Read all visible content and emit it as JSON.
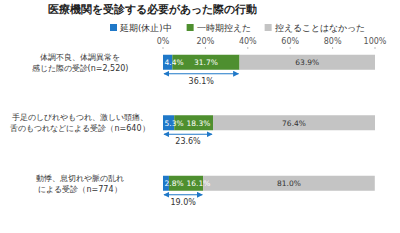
{
  "chart_data": {
    "type": "bar",
    "title": "医療機関を受診する必要があった際の行動",
    "orientation": "horizontal",
    "stacked": true,
    "data_labels": true,
    "grid": false,
    "legend": "top",
    "categories": [
      "体調不良、体調異常を\n感じた際の受診(n=2,520)",
      "手足のしびれやもつれ、激しい頭痛、\n舌のもつれなどによる受診（n=640）",
      "動悸、息切れや脈の乱れ\nによる受診（n=774）"
    ],
    "series": [
      {
        "name": "延期(休止)中",
        "color": "#1f78c8",
        "values": [
          4.4,
          5.3,
          2.8
        ],
        "value_labels": [
          "4.4%",
          "5.3%",
          "2.8%"
        ]
      },
      {
        "name": "一時期控えた",
        "color": "#4e8f2f",
        "values": [
          31.7,
          18.3,
          16.1
        ],
        "value_labels": [
          "31.7%",
          "18.3%",
          "16.1%"
        ]
      },
      {
        "name": "控えることはなかった",
        "color": "#c4c4c4",
        "values": [
          63.9,
          76.4,
          81.0
        ],
        "value_labels": [
          "63.9%",
          "76.4%",
          "81.0%"
        ]
      }
    ],
    "xlim": [
      0,
      100
    ],
    "xticks": [
      {
        "value": 0,
        "label": "0%"
      },
      {
        "value": 20,
        "label": "20%"
      },
      {
        "value": 40,
        "label": "40%"
      },
      {
        "value": 60,
        "label": "60%"
      },
      {
        "value": 80,
        "label": "80%"
      },
      {
        "value": 100,
        "label": "100%"
      }
    ],
    "annotations": [
      {
        "value": 36.1,
        "label": "36.1%"
      },
      {
        "value": 23.6,
        "label": "23.6%"
      },
      {
        "value": 19.0,
        "label": "19.0%"
      }
    ]
  }
}
